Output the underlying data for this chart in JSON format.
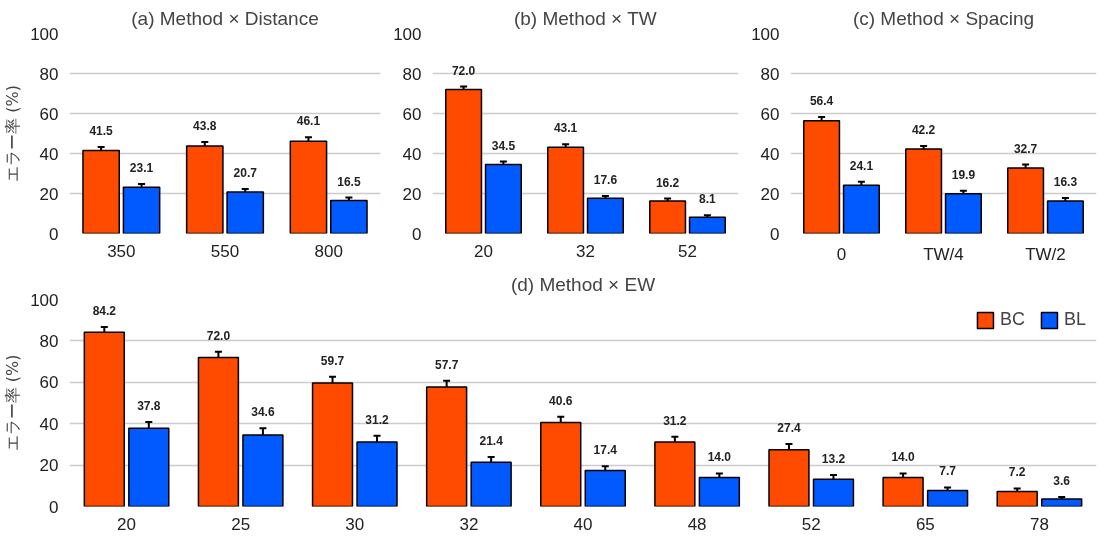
{
  "chart_data": [
    {
      "type": "bar",
      "title": "(a) Method × Distance",
      "ylabel": "エラー率 (%)",
      "categories": [
        "350",
        "550",
        "800"
      ],
      "ylim": [
        0,
        100
      ],
      "yticks": [
        0,
        20,
        40,
        60,
        80,
        100
      ],
      "grid": "y",
      "data_labels": true,
      "series": [
        {
          "color": "#ff4b00",
          "values": [
            41.5,
            43.8,
            46.1
          ],
          "errors": [
            1.8,
            2.0,
            2.0
          ]
        },
        {
          "color": "#005aff",
          "values": [
            23.1,
            20.7,
            16.5
          ],
          "errors": [
            1.6,
            1.5,
            1.5
          ]
        }
      ]
    },
    {
      "type": "bar",
      "title": "(b) Method × TW",
      "categories": [
        "20",
        "32",
        "52"
      ],
      "ylim": [
        0,
        100
      ],
      "yticks": [
        0,
        20,
        40,
        60,
        80,
        100
      ],
      "grid": "y",
      "data_labels": true,
      "series": [
        {
          "color": "#ff4b00",
          "values": [
            72.0,
            43.1,
            16.2
          ],
          "value_labels": [
            "72.0",
            "43.1",
            "16.2"
          ],
          "errors": [
            1.5,
            1.5,
            1.3
          ]
        },
        {
          "color": "#005aff",
          "values": [
            34.5,
            17.6,
            8.1
          ],
          "errors": [
            1.5,
            1.2,
            1.0
          ]
        }
      ]
    },
    {
      "type": "bar",
      "title": "(c) Method × Spacing",
      "categories": [
        "0",
        "TW/4",
        "TW/2"
      ],
      "ylim": [
        0,
        100
      ],
      "yticks": [
        0,
        20,
        40,
        60,
        80,
        100
      ],
      "grid": "y",
      "data_labels": true,
      "series": [
        {
          "color": "#ff4b00",
          "values": [
            56.4,
            42.2,
            32.7
          ],
          "errors": [
            1.8,
            1.5,
            1.8
          ]
        },
        {
          "color": "#005aff",
          "values": [
            24.1,
            19.9,
            16.3
          ],
          "errors": [
            1.8,
            1.5,
            1.5
          ]
        }
      ]
    },
    {
      "type": "bar",
      "title": "(d) Method × EW",
      "ylabel": "エラー率 (%)",
      "categories": [
        "20",
        "25",
        "30",
        "32",
        "40",
        "48",
        "52",
        "65",
        "78"
      ],
      "ylim": [
        0,
        100
      ],
      "yticks": [
        0,
        20,
        40,
        60,
        80,
        100
      ],
      "grid": "y",
      "legend": "top right",
      "series": [
        {
          "name": "BC",
          "color": "#ff4b00",
          "values": [
            84.2,
            72.0,
            59.7,
            57.7,
            40.6,
            31.2,
            27.4,
            14.0,
            7.2
          ],
          "value_labels": [
            "84.2",
            "72.0",
            "59.7",
            "57.7",
            "40.6",
            "31.2",
            "27.4",
            "14.0",
            "7.2"
          ],
          "errors": [
            2.5,
            2.8,
            3.0,
            3.0,
            2.8,
            2.5,
            2.8,
            2.0,
            1.5
          ]
        },
        {
          "name": "BL",
          "color": "#005aff",
          "values": [
            37.8,
            34.6,
            31.2,
            21.4,
            17.4,
            14.0,
            13.2,
            7.7,
            3.6
          ],
          "value_labels": [
            "37.8",
            "34.6",
            "31.2",
            "21.4",
            "17.4",
            "14.0",
            "13.2",
            "7.7",
            "3.6"
          ],
          "errors": [
            3.0,
            3.2,
            3.0,
            2.5,
            2.0,
            2.0,
            2.0,
            1.5,
            1.0
          ]
        }
      ]
    }
  ]
}
